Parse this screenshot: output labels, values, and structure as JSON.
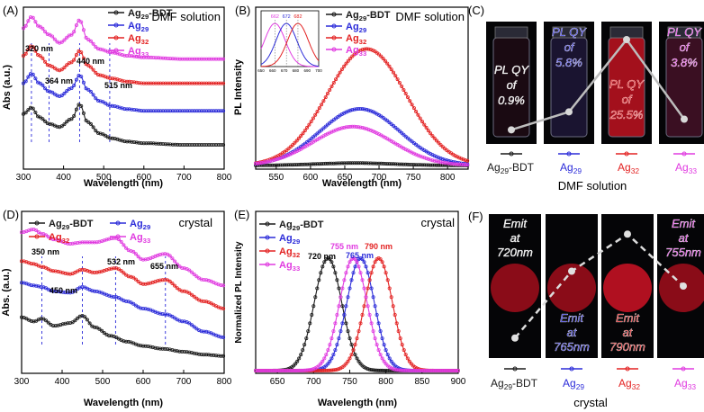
{
  "colors": {
    "bdt": "#1a1a1a",
    "ag29": "#2b2bd9",
    "ag32": "#e32222",
    "ag33": "#e03be0",
    "panel_bg": "#050507",
    "vial_red": "#a3101c",
    "vial_dark": "#14101a"
  },
  "legend": {
    "bdt": {
      "base": "Ag",
      "sub": "29",
      "suffix": "-BDT"
    },
    "ag29": {
      "base": "Ag",
      "sub": "29",
      "suffix": ""
    },
    "ag32": {
      "base": "Ag",
      "sub": "32",
      "suffix": ""
    },
    "ag33": {
      "base": "Ag",
      "sub": "33",
      "suffix": ""
    }
  },
  "chart_data": [
    {
      "panel": "(A)",
      "type": "line",
      "title": "DMF solution",
      "xlabel": "Wavelength (nm)",
      "ylabel": "Abs (a.u.)",
      "xlim": [
        300,
        800
      ],
      "xticks": [
        "300",
        "400",
        "500",
        "600",
        "700",
        "800"
      ],
      "annotations": [
        "320 nm",
        "364 nm",
        "440 nm",
        "515 nm"
      ],
      "marker_lines_nm": [
        320,
        364,
        440,
        515
      ],
      "series": [
        {
          "name": "Ag29-BDT",
          "key": "bdt",
          "x": [
            300,
            320,
            340,
            364,
            390,
            420,
            440,
            460,
            490,
            520,
            560,
            600,
            700,
            800
          ],
          "y": [
            0.34,
            0.38,
            0.32,
            0.28,
            0.26,
            0.31,
            0.4,
            0.29,
            0.22,
            0.19,
            0.17,
            0.16,
            0.15,
            0.15
          ]
        },
        {
          "name": "Ag29",
          "key": "ag29",
          "x": [
            300,
            320,
            340,
            364,
            390,
            420,
            440,
            460,
            490,
            520,
            560,
            600,
            700,
            800
          ],
          "y": [
            0.53,
            0.59,
            0.53,
            0.48,
            0.45,
            0.5,
            0.58,
            0.49,
            0.42,
            0.39,
            0.37,
            0.36,
            0.36,
            0.36
          ]
        },
        {
          "name": "Ag32",
          "key": "ag32",
          "x": [
            300,
            320,
            340,
            364,
            390,
            420,
            440,
            460,
            490,
            520,
            560,
            600,
            700,
            800
          ],
          "y": [
            0.7,
            0.76,
            0.7,
            0.64,
            0.61,
            0.66,
            0.73,
            0.64,
            0.58,
            0.56,
            0.54,
            0.53,
            0.53,
            0.53
          ]
        },
        {
          "name": "Ag33",
          "key": "ag33",
          "x": [
            300,
            320,
            340,
            364,
            390,
            420,
            440,
            460,
            490,
            520,
            560,
            600,
            700,
            800
          ],
          "y": [
            0.87,
            0.94,
            0.88,
            0.83,
            0.78,
            0.83,
            0.92,
            0.8,
            0.74,
            0.72,
            0.7,
            0.69,
            0.68,
            0.68
          ]
        }
      ]
    },
    {
      "panel": "(B)",
      "type": "line",
      "title": "DMF solution",
      "xlabel": "Wavelength (nm)",
      "ylabel": "PL Intensity",
      "xlim": [
        520,
        830
      ],
      "xticks": [
        "550",
        "600",
        "650",
        "700",
        "750",
        "800"
      ],
      "series": [
        {
          "name": "Ag29-BDT",
          "key": "bdt",
          "peak": 665,
          "height": 0.015
        },
        {
          "name": "Ag29",
          "key": "ag29",
          "peak": 672,
          "height": 0.35
        },
        {
          "name": "Ag32",
          "key": "ag32",
          "peak": 682,
          "height": 0.72
        },
        {
          "name": "Ag33",
          "key": "ag33",
          "peak": 662,
          "height": 0.24
        }
      ],
      "inset": {
        "xlim": [
          650,
          700
        ],
        "xticks": [
          "650",
          "660",
          "670",
          "680",
          "690",
          "700"
        ],
        "peak_labels": [
          {
            "text": "662",
            "key": "ag33",
            "nm": 662
          },
          {
            "text": "672",
            "key": "ag29",
            "nm": 672
          },
          {
            "text": "682",
            "key": "ag32",
            "nm": 682
          }
        ]
      }
    },
    {
      "panel": "(C)",
      "type": "line",
      "title": "DMF solution",
      "categories": [
        "Ag29-BDT",
        "Ag29",
        "Ag32",
        "Ag33"
      ],
      "quantum_yield_percent": [
        0.9,
        5.8,
        25.5,
        3.8
      ],
      "labels": [
        {
          "l1": "PL QY",
          "l2": "of",
          "l3": "0.9%"
        },
        {
          "l1": "PL QY",
          "l2": "of",
          "l3": "5.8%"
        },
        {
          "l1": "PL QY",
          "l2": "of",
          "l3": "25.5%"
        },
        {
          "l1": "PL QY",
          "l2": "of",
          "l3": "3.8%"
        }
      ]
    },
    {
      "panel": "(D)",
      "type": "line",
      "title": "crystal",
      "xlabel": "Wavelength (nm)",
      "ylabel": "Abs. (a.u.)",
      "xlim": [
        300,
        800
      ],
      "xticks": [
        "300",
        "400",
        "500",
        "600",
        "700",
        "800"
      ],
      "annotations": [
        "350 nm",
        "450 nm",
        "532 nm",
        "655 nm"
      ],
      "marker_lines_nm": [
        350,
        450,
        532,
        655
      ],
      "series": [
        {
          "name": "Ag29-BDT",
          "key": "bdt",
          "x": [
            300,
            330,
            350,
            380,
            420,
            450,
            480,
            520,
            560,
            600,
            650,
            700,
            750,
            800
          ],
          "y": [
            0.34,
            0.31,
            0.33,
            0.28,
            0.3,
            0.35,
            0.27,
            0.21,
            0.17,
            0.14,
            0.12,
            0.1,
            0.08,
            0.07
          ]
        },
        {
          "name": "Ag29",
          "key": "ag29",
          "x": [
            300,
            330,
            350,
            380,
            420,
            450,
            480,
            532,
            560,
            600,
            655,
            700,
            750,
            800
          ],
          "y": [
            0.58,
            0.56,
            0.55,
            0.52,
            0.51,
            0.55,
            0.52,
            0.48,
            0.45,
            0.4,
            0.36,
            0.31,
            0.24,
            0.2
          ]
        },
        {
          "name": "Ag32",
          "key": "ag32",
          "x": [
            300,
            330,
            350,
            380,
            420,
            450,
            480,
            532,
            570,
            600,
            655,
            700,
            750,
            800
          ],
          "y": [
            0.73,
            0.71,
            0.69,
            0.66,
            0.64,
            0.67,
            0.65,
            0.68,
            0.62,
            0.57,
            0.6,
            0.52,
            0.45,
            0.4
          ]
        },
        {
          "name": "Ag33",
          "key": "ag33",
          "x": [
            300,
            330,
            350,
            380,
            420,
            450,
            480,
            532,
            570,
            600,
            655,
            700,
            750,
            800
          ],
          "y": [
            0.93,
            0.95,
            0.92,
            0.88,
            0.85,
            0.86,
            0.86,
            0.89,
            0.8,
            0.74,
            0.78,
            0.68,
            0.6,
            0.56
          ]
        }
      ]
    },
    {
      "panel": "(E)",
      "type": "line",
      "title": "crystal",
      "xlabel": "Wavelength (nm)",
      "ylabel": "Normalized PL Intensity",
      "xlim": [
        620,
        900
      ],
      "xticks": [
        "650",
        "700",
        "750",
        "800",
        "850",
        "900"
      ],
      "peak_labels": [
        "720 nm",
        "755 nm",
        "765 nm",
        "790 nm"
      ],
      "series": [
        {
          "name": "Ag29-BDT",
          "key": "bdt",
          "peak": 720,
          "height": 1.0
        },
        {
          "name": "Ag29",
          "key": "ag29",
          "peak": 765,
          "height": 1.0
        },
        {
          "name": "Ag32",
          "key": "ag32",
          "peak": 790,
          "height": 1.0
        },
        {
          "name": "Ag33",
          "key": "ag33",
          "peak": 755,
          "height": 1.0
        }
      ]
    },
    {
      "panel": "(F)",
      "type": "line",
      "title": "crystal",
      "categories": [
        "Ag29-BDT",
        "Ag29",
        "Ag32",
        "Ag33"
      ],
      "emission_nm": [
        720,
        765,
        790,
        755
      ],
      "labels": [
        {
          "l1": "Emit",
          "l2": "at",
          "l3": "720nm"
        },
        {
          "l1": "Emit",
          "l2": "at",
          "l3": "765nm"
        },
        {
          "l1": "Emit",
          "l2": "at",
          "l3": "790nm"
        },
        {
          "l1": "Emit",
          "l2": "at",
          "l3": "755nm"
        }
      ]
    }
  ]
}
